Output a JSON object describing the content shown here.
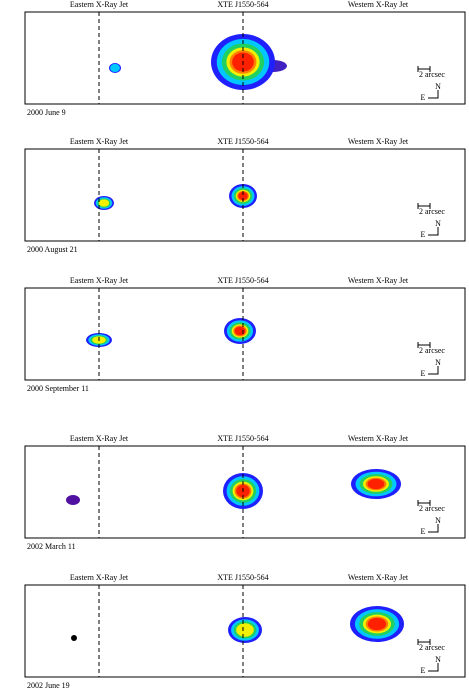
{
  "panels": [
    {
      "east_label": "Eastern X-Ray Jet",
      "core_label": "XTE J1550-564",
      "west_label": "Western X-Ray Jet",
      "scale": "2 arcsec",
      "north": "N",
      "east": "E",
      "date": "2000 June 9"
    },
    {
      "east_label": "Eastern X-Ray Jet",
      "core_label": "XTE J1550-564",
      "west_label": "Western X-Ray Jet",
      "scale": "2 arcsec",
      "north": "N",
      "east": "E",
      "date": "2000 August 21"
    },
    {
      "east_label": "Eastern X-Ray Jet",
      "core_label": "XTE J1550-564",
      "west_label": "Western X-Ray Jet",
      "scale": "2 arcsec",
      "north": "N",
      "east": "E",
      "date": "2000 September 11"
    },
    {
      "east_label": "Eastern X-Ray Jet",
      "core_label": "XTE J1550-564",
      "west_label": "Western X-Ray Jet",
      "scale": "2 arcsec",
      "north": "N",
      "east": "E",
      "date": "2002 March 11"
    },
    {
      "east_label": "Eastern X-Ray Jet",
      "core_label": "XTE J1550-564",
      "west_label": "Western X-Ray Jet",
      "scale": "2 arcsec",
      "north": "N",
      "east": "E",
      "date": "2002 June 19"
    }
  ]
}
